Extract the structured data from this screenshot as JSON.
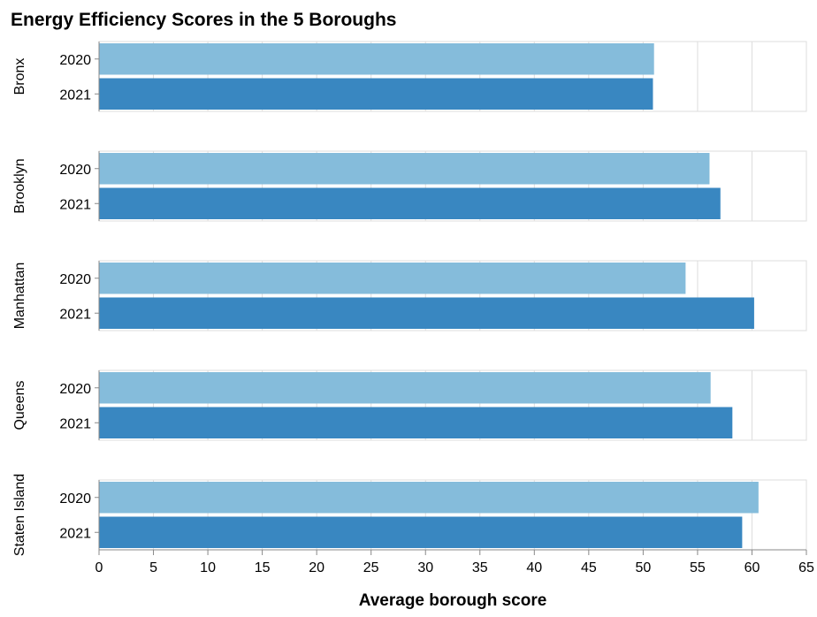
{
  "chart_data": {
    "type": "bar",
    "title": "Energy Efficiency Scores in the 5 Boroughs",
    "x_label": "Average borough score",
    "facets": [
      "Bronx",
      "Brooklyn",
      "Manhattan",
      "Queens",
      "Staten Island"
    ],
    "series": [
      {
        "name": "2020",
        "color": "#85bcdb",
        "values": [
          51.0,
          56.1,
          53.9,
          56.2,
          60.6
        ]
      },
      {
        "name": "2021",
        "color": "#3987c1",
        "values": [
          50.9,
          57.1,
          60.2,
          58.2,
          59.1
        ]
      }
    ],
    "xlim": [
      0,
      65
    ],
    "xticks": [
      0,
      5,
      10,
      15,
      20,
      25,
      30,
      35,
      40,
      45,
      50,
      55,
      60,
      65
    ],
    "grid": true
  }
}
